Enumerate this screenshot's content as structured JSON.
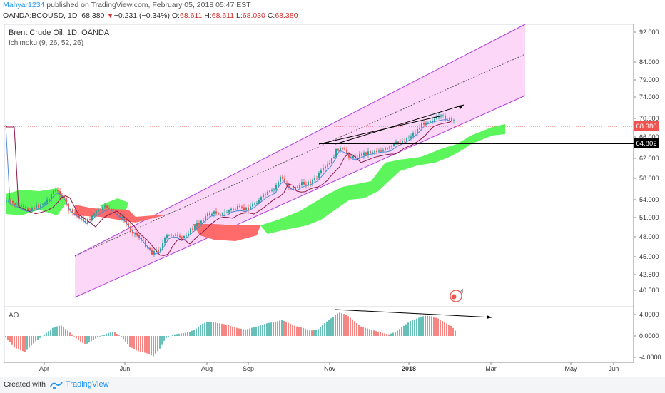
{
  "header": {
    "author": "Mahyar1234",
    "published": "published on TradingView.com, February 05, 2018 05:47 EST",
    "symbol": "OANDA:BCOUSD, 1D",
    "last": "68.380",
    "change_arrow": "▼",
    "change": "−0.231 (−0.34%)",
    "o_label": "O:",
    "o_value": "68.611",
    "h_label": "H:",
    "h_value": "68.611",
    "l_label": "L:",
    "l_value": "68.030",
    "c_label": "C:",
    "c_value": "68.380"
  },
  "chart": {
    "title": "Brent Crude Oil, 1D, OANDA",
    "indicator": "Ichimoku (9, 26, 52, 26)",
    "price_ticks": [
      "92.000",
      "84.000",
      "79.000",
      "74.000",
      "70.000",
      "66.000",
      "62.000",
      "58.000",
      "54.000",
      "51.000",
      "48.000",
      "45.000",
      "42.500",
      "40.500"
    ],
    "last_price_label": "68.380",
    "line_price_label": "64.802",
    "time_labels": [
      "Apr",
      "Jun",
      "Aug",
      "Sep",
      "Nov",
      "2018",
      "Mar",
      "May",
      "Jun"
    ],
    "event_badge": "4",
    "colors": {
      "channel_fill": "#fdd7f7",
      "channel_line": "#b23cdd",
      "cloud_bull": "#5cf55c",
      "cloud_bear": "#ff6b6b",
      "candle_up": "#26a69a",
      "candle_down": "#ef5350",
      "price_label_bg": "#ef5350",
      "ao_up": "#26a69a",
      "ao_down": "#ef5350"
    }
  },
  "ao": {
    "title": "AO",
    "ticks": [
      "4.0000",
      "0.0000",
      "-4.0000"
    ]
  },
  "footer": {
    "created_with": "Created with",
    "brand": "TradingView"
  }
}
